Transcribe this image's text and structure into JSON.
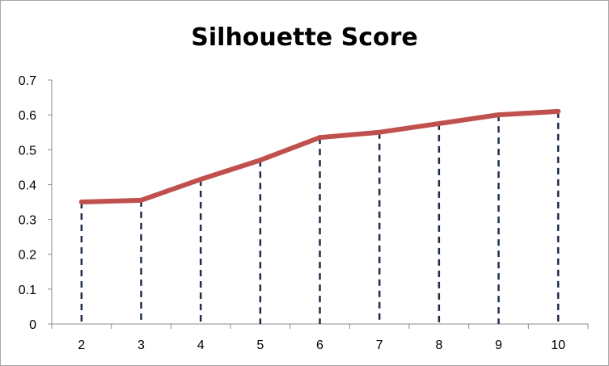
{
  "chart_data": {
    "type": "line",
    "title": "Silhouette Score",
    "xlabel": "",
    "ylabel": "",
    "categories": [
      "2",
      "3",
      "4",
      "5",
      "6",
      "7",
      "8",
      "9",
      "10"
    ],
    "series": [
      {
        "values": [
          0.35,
          0.355,
          0.415,
          0.47,
          0.535,
          0.55,
          0.575,
          0.6,
          0.61
        ]
      }
    ],
    "ylim": [
      0,
      0.7
    ],
    "yticks": [
      "0",
      "0.1",
      "0.2",
      "0.3",
      "0.4",
      "0.5",
      "0.6",
      "0.7"
    ],
    "grid": false,
    "legend": "none",
    "drop_lines": true,
    "colors": {
      "line": "#c0504d",
      "drop_line": "#1f2d4a",
      "axis": "#8c8c8c"
    }
  }
}
